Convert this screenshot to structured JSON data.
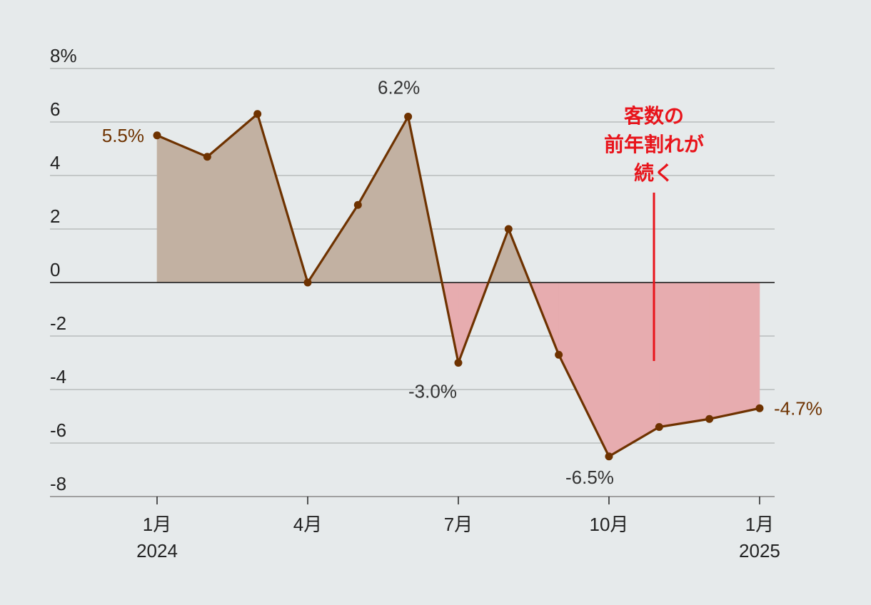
{
  "chart_data": {
    "type": "line",
    "title": "",
    "xlabel": "",
    "ylabel": "",
    "ylim": [
      -8,
      8
    ],
    "y_ticks": [
      "8%",
      "6",
      "4",
      "2",
      "0",
      "-2",
      "-4",
      "-6",
      "-8"
    ],
    "x_ticks": [
      {
        "index": 0,
        "line1": "1月",
        "line2": "2024"
      },
      {
        "index": 3,
        "line1": "4月",
        "line2": ""
      },
      {
        "index": 6,
        "line1": "7月",
        "line2": ""
      },
      {
        "index": 9,
        "line1": "10月",
        "line2": ""
      },
      {
        "index": 12,
        "line1": "1月",
        "line2": "2025"
      }
    ],
    "series": [
      {
        "values": [
          5.5,
          4.7,
          6.3,
          0.0,
          2.9,
          6.2,
          -3.0,
          2.0,
          -2.7,
          -6.5,
          -5.4,
          -5.1,
          -4.7
        ]
      }
    ],
    "data_labels": [
      {
        "index": 0,
        "text": "5.5%"
      },
      {
        "index": 5,
        "text": "6.2%"
      },
      {
        "index": 6,
        "text": "-3.0%"
      },
      {
        "index": 9,
        "text": "-6.5%"
      },
      {
        "index": 12,
        "text": "-4.7%"
      }
    ],
    "annotation": {
      "lines": [
        "客数の",
        "前年割れが",
        "続く"
      ]
    },
    "colors": {
      "line": "#6e3200",
      "positive_fill": "#c2b1a2",
      "negative_fill": "#e7acaf",
      "grid": "#b9bcbd",
      "annotation": "#e8141b"
    },
    "grid": true
  }
}
